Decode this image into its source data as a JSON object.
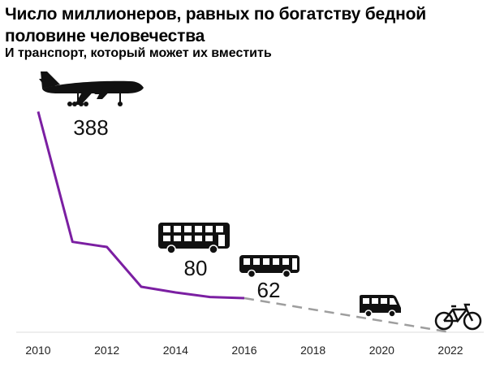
{
  "title": "Число миллионеров, равных по богатству бедной половине человечества",
  "subtitle": "И транспорт, который может их вместить",
  "chart_data": {
    "type": "line",
    "title": "Число миллионеров, равных по богатству бедной половине человечества",
    "subtitle": "И транспорт, который может их вместить",
    "xlabel": "",
    "ylabel": "",
    "x_ticks": [
      "2010",
      "2012",
      "2014",
      "2016",
      "2018",
      "2020",
      "2022"
    ],
    "xlim": [
      2010,
      2022
    ],
    "ylim": [
      0,
      400
    ],
    "grid": false,
    "series": [
      {
        "style": "solid",
        "color": "#7b1fa2",
        "x": [
          2010,
          2011,
          2012,
          2013,
          2014,
          2015,
          2016
        ],
        "y": [
          388,
          159,
          150,
          80,
          70,
          62,
          60
        ]
      },
      {
        "style": "dashed",
        "color": "#9e9e9e",
        "x": [
          2016,
          2022
        ],
        "y": [
          60,
          0
        ]
      }
    ],
    "annotations": [
      {
        "value": "388",
        "icon": "airplane-icon",
        "x": 2010
      },
      {
        "value": "80",
        "icon": "double-decker-bus-icon",
        "x": 2013
      },
      {
        "value": "62",
        "icon": "bus-icon",
        "x": 2015
      },
      {
        "value": "",
        "icon": "minibus-icon",
        "x": 2020
      },
      {
        "value": "",
        "icon": "bicycle-icon",
        "x": 2022
      }
    ]
  }
}
